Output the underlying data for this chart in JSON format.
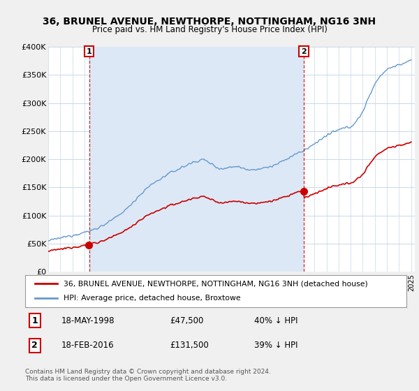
{
  "title": "36, BRUNEL AVENUE, NEWTHORPE, NOTTINGHAM, NG16 3NH",
  "subtitle": "Price paid vs. HM Land Registry's House Price Index (HPI)",
  "red_label": "36, BRUNEL AVENUE, NEWTHORPE, NOTTINGHAM, NG16 3NH (detached house)",
  "blue_label": "HPI: Average price, detached house, Broxtowe",
  "transactions": [
    {
      "num": "1",
      "date": "18-MAY-1998",
      "price": "£47,500",
      "hpi": "40% ↓ HPI",
      "year": 1998.38,
      "price_val": 47500
    },
    {
      "num": "2",
      "date": "18-FEB-2016",
      "price": "£131,500",
      "hpi": "39% ↓ HPI",
      "year": 2016.13,
      "price_val": 131500
    }
  ],
  "footer": "Contains HM Land Registry data © Crown copyright and database right 2024.\nThis data is licensed under the Open Government Licence v3.0.",
  "ylim": [
    0,
    400000
  ],
  "yticks": [
    0,
    50000,
    100000,
    150000,
    200000,
    250000,
    300000,
    350000,
    400000
  ],
  "ytick_labels": [
    "£0",
    "£50K",
    "£100K",
    "£150K",
    "£200K",
    "£250K",
    "£300K",
    "£350K",
    "£400K"
  ],
  "xlim_start": 1995.0,
  "xlim_end": 2025.3,
  "background_color": "#f0f0f0",
  "plot_bg_color": "#ffffff",
  "shade_color": "#dce8f5",
  "red_color": "#cc0000",
  "blue_color": "#6699cc",
  "grid_color": "#c8d8e8"
}
